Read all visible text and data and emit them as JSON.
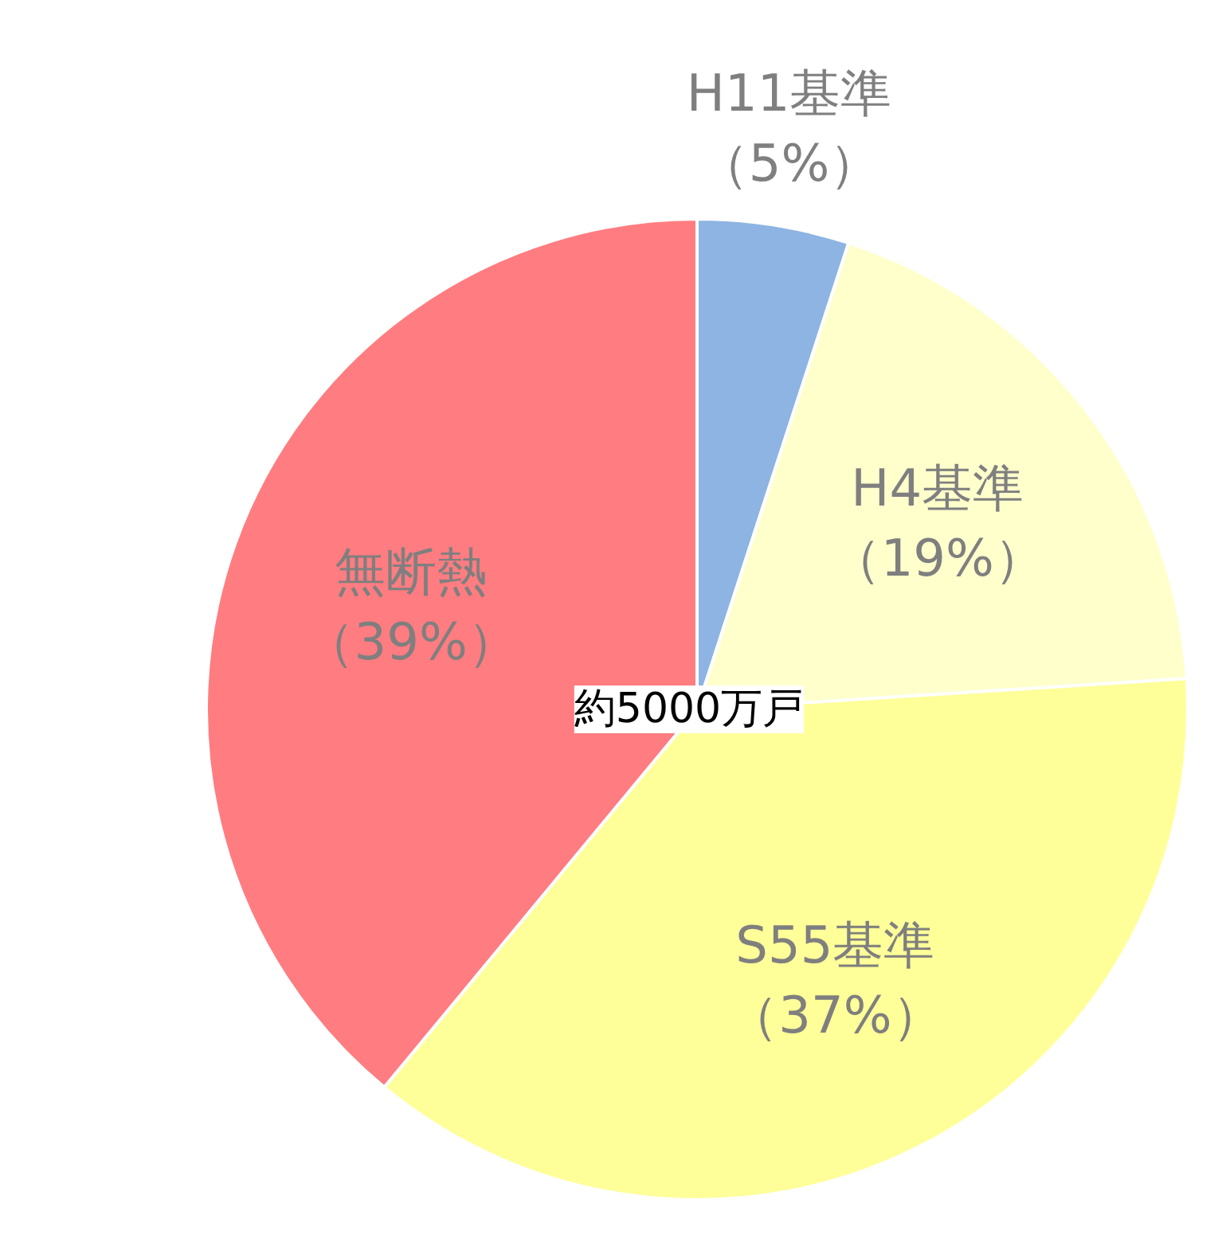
{
  "chart_data": {
    "type": "pie",
    "categories": [
      "H11基準",
      "H4基準",
      "S55基準",
      "無断熱"
    ],
    "values": [
      5,
      19,
      37,
      39
    ],
    "value_labels": [
      "（5%）",
      "（19%）",
      "（37%）",
      "（39%）"
    ],
    "colors": [
      "#8db4e2",
      "#ffffcc",
      "#ffff99",
      "#ff7c80"
    ],
    "annotations": [
      "約5000万戸"
    ]
  }
}
